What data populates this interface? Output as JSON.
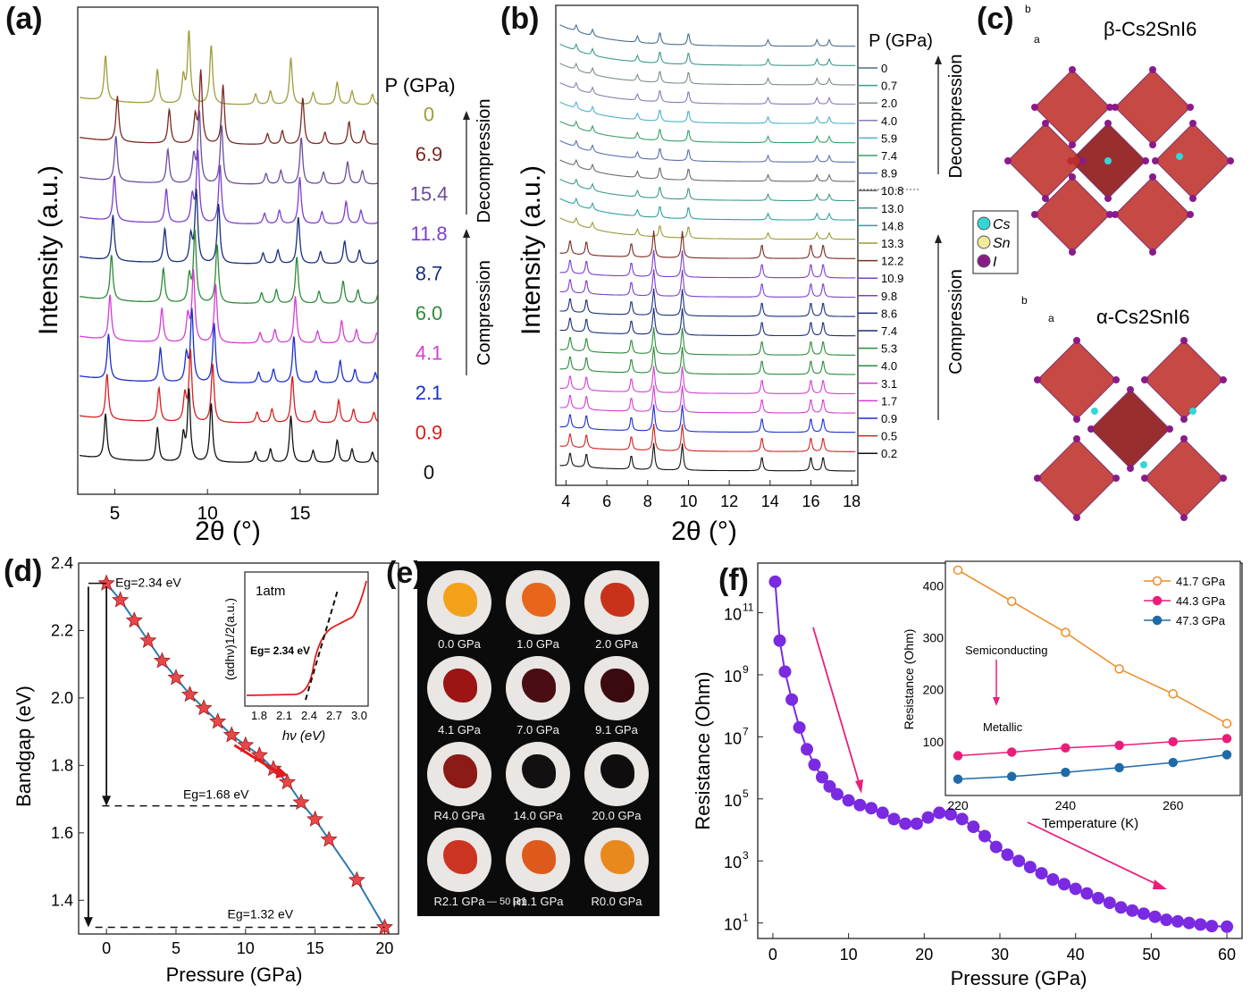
{
  "panel_labels": {
    "a": "(a)",
    "b": "(b)",
    "c": "(c)",
    "d": "(d)",
    "e": "(e)",
    "f": "(f)"
  },
  "panel_a": {
    "ylabel": "Intensity (a.u.)",
    "xlabel": "2θ (°)",
    "legend_title": "P (GPa)",
    "xticks": [
      "5",
      "10",
      "15"
    ],
    "decompression_label": "Decompression",
    "compression_label": "Compression",
    "traces": [
      {
        "p": "0",
        "color": "#9e9d3b"
      },
      {
        "p": "6.9",
        "color": "#7a2a22"
      },
      {
        "p": "15.4",
        "color": "#6a4e9a"
      },
      {
        "p": "11.8",
        "color": "#7b3fcf"
      },
      {
        "p": "8.7",
        "color": "#1a2f7a"
      },
      {
        "p": "6.0",
        "color": "#2e8b3a"
      },
      {
        "p": "4.1",
        "color": "#d23fd2"
      },
      {
        "p": "2.1",
        "color": "#1b2fd0"
      },
      {
        "p": "0.9",
        "color": "#d42020"
      },
      {
        "p": "0",
        "color": "#111111"
      }
    ]
  },
  "panel_b": {
    "ylabel": "Intensity (a.u.)",
    "xlabel": "2θ (°)",
    "legend_title": "P (GPa)",
    "xticks": [
      "4",
      "6",
      "8",
      "10",
      "12",
      "14",
      "16",
      "18"
    ],
    "decompression_label": "Decompression",
    "compression_label": "Compression",
    "pressures": [
      "0",
      "0.7",
      "2.0",
      "4.0",
      "5.9",
      "7.4",
      "8.9",
      "10.8",
      "13.0",
      "14.8",
      "13.3",
      "12.2",
      "10.9",
      "9.8",
      "8.6",
      "7.4",
      "5.3",
      "4.0",
      "3.1",
      "1.7",
      "0.9",
      "0.5",
      "0.2"
    ],
    "colors": [
      "#4a6e8f",
      "#3d9a8b",
      "#7f8c8d",
      "#8b7bb3",
      "#4bb3c7",
      "#3aa06a",
      "#5a6fb0",
      "#6c6c6c",
      "#3d9a8b",
      "#2ea0a0",
      "#9a9a3a",
      "#7a2a22",
      "#7b3fcf",
      "#7b3fcf",
      "#1a2f7a",
      "#1a2f7a",
      "#2e8b3a",
      "#2e8b3a",
      "#d23fd2",
      "#d23fd2",
      "#1b2fd0",
      "#d42020",
      "#111111"
    ]
  },
  "panel_c": {
    "beta_title": "β-Cs2SnI6",
    "alpha_title": "α-Cs2SnI6",
    "axis_b": "b",
    "axis_a": "a",
    "legend": [
      {
        "label": "Cs",
        "color": "#33d6d6"
      },
      {
        "label": "Sn",
        "color": "#f2ea9a"
      },
      {
        "label": "I",
        "color": "#8a1a8a"
      }
    ]
  },
  "chart_data": [
    {
      "type": "line",
      "title": "",
      "xlabel": "Pressure (GPa)",
      "ylabel": "Bandgap (eV)",
      "xlim": [
        -2,
        21
      ],
      "ylim": [
        1.3,
        2.4
      ],
      "xticks": [
        0,
        5,
        10,
        15,
        20
      ],
      "yticks": [
        1.4,
        1.6,
        1.8,
        2.0,
        2.2,
        2.4
      ],
      "x": [
        0,
        1,
        2,
        3,
        4,
        5,
        6,
        7,
        8,
        9,
        10,
        11,
        12,
        13,
        14,
        15,
        16,
        18,
        20
      ],
      "y": [
        2.34,
        2.29,
        2.23,
        2.17,
        2.11,
        2.06,
        2.01,
        1.97,
        1.93,
        1.89,
        1.86,
        1.83,
        1.79,
        1.75,
        1.69,
        1.64,
        1.58,
        1.46,
        1.32
      ],
      "annotations": [
        "Eg=2.34 eV",
        "Eg=1.68 eV",
        "Eg=1.32 eV"
      ],
      "inset": {
        "label": "1atm",
        "eg_label": "Eg= 2.34 eV",
        "xlabel": "hν (eV)",
        "ylabel": "(αdhν)1/2(a.u.)",
        "xticks": [
          "1.8",
          "2.1",
          "2.4",
          "2.7",
          "3.0"
        ]
      }
    },
    {
      "type": "scatter",
      "title": "",
      "xlabel": "Pressure (GPa)",
      "ylabel": "Resistance (Ohm)",
      "yscale": "log",
      "xlim": [
        -2,
        62
      ],
      "ylim_log10": [
        0.5,
        12.6
      ],
      "xticks": [
        0,
        10,
        20,
        30,
        40,
        50,
        60
      ],
      "ytick_labels": [
        "10",
        "10",
        "10",
        "10",
        "10",
        "10"
      ],
      "ytick_exps": [
        "1",
        "3",
        "5",
        "7",
        "9",
        "11"
      ],
      "x": [
        0.3,
        0.9,
        1.6,
        2.5,
        3.5,
        4.5,
        5.5,
        6.5,
        7.5,
        8.5,
        10,
        11.5,
        13,
        14.5,
        16,
        17.5,
        19,
        20.5,
        22,
        23.5,
        25,
        26.5,
        28,
        29.5,
        31,
        32.5,
        34,
        35.5,
        37,
        38.5,
        40,
        41.5,
        43,
        44.5,
        46,
        47.5,
        49,
        50.5,
        52,
        53.5,
        55,
        56.5,
        58,
        60
      ],
      "log10_y": [
        12.0,
        10.1,
        9.1,
        8.2,
        7.3,
        6.6,
        6.1,
        5.7,
        5.4,
        5.15,
        4.95,
        4.8,
        4.7,
        4.55,
        4.35,
        4.2,
        4.2,
        4.4,
        4.55,
        4.5,
        4.35,
        4.1,
        3.8,
        3.45,
        3.2,
        3.0,
        2.8,
        2.6,
        2.4,
        2.25,
        2.1,
        1.95,
        1.8,
        1.65,
        1.5,
        1.4,
        1.3,
        1.2,
        1.1,
        1.05,
        1.0,
        0.95,
        0.9,
        0.88
      ],
      "inset": {
        "xlabel": "Temperature (K)",
        "ylabel": "Resistance (Ohm)",
        "xlim": [
          218,
          272
        ],
        "ylim": [
          0,
          440
        ],
        "xticks": [
          220,
          240,
          260
        ],
        "yticks": [
          100,
          200,
          300,
          400
        ],
        "semiconducting": "Semiconducting",
        "metallic": "Metallic",
        "series": [
          {
            "name": "41.7 GPa",
            "color": "#f08a24",
            "x": [
              220,
              230,
              240,
              250,
              260,
              270
            ],
            "y": [
              430,
              370,
              310,
              240,
              192,
              135
            ],
            "open": true
          },
          {
            "name": "44.3 GPa",
            "color": "#ea1e7a",
            "x": [
              220,
              230,
              240,
              250,
              260,
              270
            ],
            "y": [
              73,
              80,
              88,
              93,
              100,
              106
            ],
            "open": false
          },
          {
            "name": "47.3 GPa",
            "color": "#1f6aa8",
            "x": [
              220,
              230,
              240,
              250,
              260,
              270
            ],
            "y": [
              28,
              33,
              41,
              50,
              60,
              75
            ],
            "open": false
          }
        ]
      }
    }
  ],
  "panel_e": {
    "captions": [
      "0.0 GPa",
      "1.0 GPa",
      "2.0 GPa",
      "4.1 GPa",
      "7.0 GPa",
      "9.1 GPa",
      "R4.0 GPa",
      "14.0 GPa",
      "20.0 GPa",
      "R2.1 GPa",
      "R1.1 GPa",
      "R0.0 GPa"
    ],
    "colors": [
      "#f4a11a",
      "#e8661c",
      "#c9321a",
      "#9c1414",
      "#4a0d14",
      "#3b0a10",
      "#8c1a16",
      "#121010",
      "#0f0d0d",
      "#cc3422",
      "#dd5a1c",
      "#e8891e"
    ],
    "scale_bar": "— 50 μm"
  }
}
